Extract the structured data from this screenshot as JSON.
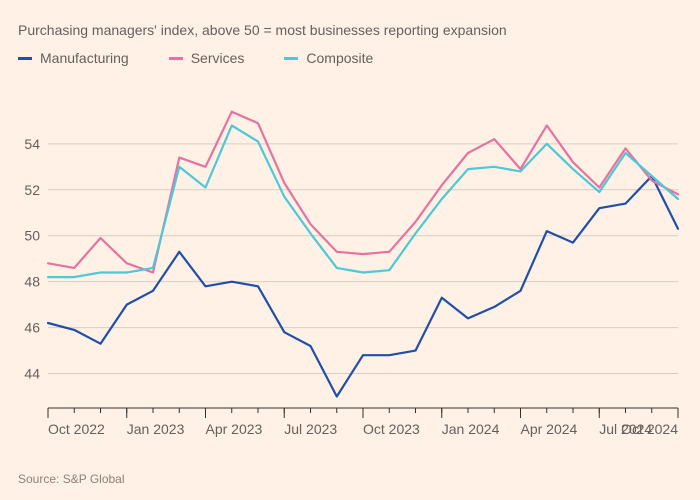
{
  "subtitle": "Purchasing managers' index, above 50 = most businesses reporting expansion",
  "source": "Source: S&P Global",
  "legend": [
    {
      "label": "Manufacturing",
      "color": "#1f4fa8"
    },
    {
      "label": "Services",
      "color": "#e5739e"
    },
    {
      "label": "Composite",
      "color": "#4ec7d6"
    }
  ],
  "chart": {
    "type": "line",
    "background_color": "#fff1e5",
    "grid_color": "#d9ccc1",
    "axis_color": "#33302e",
    "line_width": 2.2,
    "y": {
      "min": 42.5,
      "max": 56.3,
      "ticks": [
        44,
        46,
        48,
        50,
        52,
        54
      ]
    },
    "x": {
      "n_points": 25,
      "ticks": [
        {
          "i": 0,
          "label": "Oct 2022"
        },
        {
          "i": 3,
          "label": "Jan 2023"
        },
        {
          "i": 6,
          "label": "Apr 2023"
        },
        {
          "i": 9,
          "label": "Jul 2023"
        },
        {
          "i": 12,
          "label": "Oct 2023"
        },
        {
          "i": 15,
          "label": "Jan 2024"
        },
        {
          "i": 18,
          "label": "Apr 2024"
        },
        {
          "i": 21,
          "label": "Jul 2024"
        },
        {
          "i": 24,
          "label": "Oct 2024"
        }
      ],
      "month_ticks": true
    },
    "series": [
      {
        "name": "Manufacturing",
        "color": "#1f4fa8",
        "values": [
          46.2,
          45.9,
          45.3,
          47.0,
          47.6,
          49.3,
          47.8,
          48.0,
          47.8,
          45.8,
          45.2,
          43.0,
          44.8,
          44.8,
          45.0,
          47.3,
          46.4,
          46.9,
          47.6,
          50.2,
          49.7,
          51.2,
          51.4,
          52.6,
          50.3
        ]
      },
      {
        "name": "Services",
        "color": "#e5739e",
        "values": [
          48.8,
          48.6,
          49.9,
          48.8,
          48.4,
          53.4,
          53.0,
          55.4,
          54.9,
          52.3,
          50.5,
          49.3,
          49.2,
          49.3,
          50.6,
          52.2,
          53.6,
          54.2,
          52.9,
          54.8,
          53.2,
          52.1,
          53.8,
          52.4,
          51.8
        ]
      },
      {
        "name": "Composite",
        "color": "#4ec7d6",
        "values": [
          48.2,
          48.2,
          48.4,
          48.4,
          48.6,
          53.0,
          52.1,
          54.8,
          54.1,
          51.7,
          50.1,
          48.6,
          48.4,
          48.5,
          50.1,
          51.6,
          52.9,
          53.0,
          52.8,
          54.0,
          52.9,
          51.9,
          53.6,
          52.6,
          51.6
        ]
      }
    ]
  }
}
